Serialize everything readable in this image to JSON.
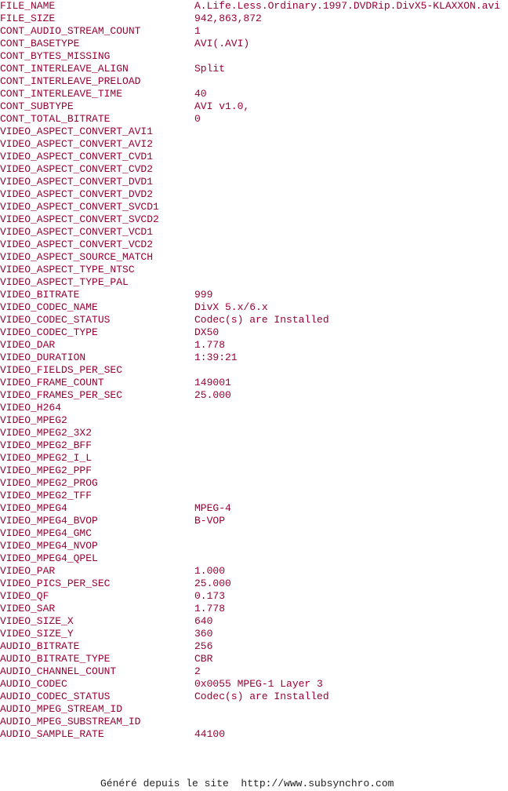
{
  "rows": [
    {
      "key": "FILE_NAME",
      "value": "A.Life.Less.Ordinary.1997.DVDRip.DivX5-KLAXXON.avi"
    },
    {
      "key": "FILE_SIZE",
      "value": "942,863,872"
    },
    {
      "key": "CONT_AUDIO_STREAM_COUNT",
      "value": "1"
    },
    {
      "key": "CONT_BASETYPE",
      "value": "AVI(.AVI)"
    },
    {
      "key": "CONT_BYTES_MISSING"
    },
    {
      "key": "CONT_INTERLEAVE_ALIGN",
      "value": "Split"
    },
    {
      "key": "CONT_INTERLEAVE_PRELOAD"
    },
    {
      "key": "CONT_INTERLEAVE_TIME",
      "value": "40"
    },
    {
      "key": "CONT_SUBTYPE",
      "value": "AVI v1.0,"
    },
    {
      "key": "CONT_TOTAL_BITRATE",
      "value": "0"
    },
    {
      "key": "VIDEO_ASPECT_CONVERT_AVI1"
    },
    {
      "key": "VIDEO_ASPECT_CONVERT_AVI2"
    },
    {
      "key": "VIDEO_ASPECT_CONVERT_CVD1"
    },
    {
      "key": "VIDEO_ASPECT_CONVERT_CVD2"
    },
    {
      "key": "VIDEO_ASPECT_CONVERT_DVD1"
    },
    {
      "key": "VIDEO_ASPECT_CONVERT_DVD2"
    },
    {
      "key": "VIDEO_ASPECT_CONVERT_SVCD1"
    },
    {
      "key": "VIDEO_ASPECT_CONVERT_SVCD2"
    },
    {
      "key": "VIDEO_ASPECT_CONVERT_VCD1"
    },
    {
      "key": "VIDEO_ASPECT_CONVERT_VCD2"
    },
    {
      "key": "VIDEO_ASPECT_SOURCE_MATCH"
    },
    {
      "key": "VIDEO_ASPECT_TYPE_NTSC"
    },
    {
      "key": "VIDEO_ASPECT_TYPE_PAL"
    },
    {
      "key": "VIDEO_BITRATE",
      "value": "999"
    },
    {
      "key": "VIDEO_CODEC_NAME",
      "value": "DivX 5.x/6.x"
    },
    {
      "key": "VIDEO_CODEC_STATUS",
      "value": "Codec(s) are Installed"
    },
    {
      "key": "VIDEO_CODEC_TYPE",
      "value": "DX50"
    },
    {
      "key": "VIDEO_DAR",
      "value": "1.778"
    },
    {
      "key": "VIDEO_DURATION",
      "value": "1:39:21"
    },
    {
      "key": "VIDEO_FIELDS_PER_SEC"
    },
    {
      "key": "VIDEO_FRAME_COUNT",
      "value": "149001"
    },
    {
      "key": "VIDEO_FRAMES_PER_SEC",
      "value": "25.000"
    },
    {
      "key": "VIDEO_H264"
    },
    {
      "key": "VIDEO_MPEG2"
    },
    {
      "key": "VIDEO_MPEG2_3X2"
    },
    {
      "key": "VIDEO_MPEG2_BFF"
    },
    {
      "key": "VIDEO_MPEG2_I_L"
    },
    {
      "key": "VIDEO_MPEG2_PPF"
    },
    {
      "key": "VIDEO_MPEG2_PROG"
    },
    {
      "key": "VIDEO_MPEG2_TFF"
    },
    {
      "key": "VIDEO_MPEG4",
      "value": "MPEG-4"
    },
    {
      "key": "VIDEO_MPEG4_BVOP",
      "value": "B-VOP"
    },
    {
      "key": "VIDEO_MPEG4_GMC"
    },
    {
      "key": "VIDEO_MPEG4_NVOP"
    },
    {
      "key": "VIDEO_MPEG4_QPEL"
    },
    {
      "key": "VIDEO_PAR",
      "value": "1.000"
    },
    {
      "key": "VIDEO_PICS_PER_SEC",
      "value": "25.000"
    },
    {
      "key": "VIDEO_QF",
      "value": "0.173"
    },
    {
      "key": "VIDEO_SAR",
      "value": "1.778"
    },
    {
      "key": "VIDEO_SIZE_X",
      "value": "640"
    },
    {
      "key": "VIDEO_SIZE_Y",
      "value": "360"
    },
    {
      "key": "AUDIO_BITRATE",
      "value": "256"
    },
    {
      "key": "AUDIO_BITRATE_TYPE",
      "value": "CBR"
    },
    {
      "key": "AUDIO_CHANNEL_COUNT",
      "value": "2"
    },
    {
      "key": "AUDIO_CODEC",
      "value": "0x0055 MPEG-1 Layer 3"
    },
    {
      "key": "AUDIO_CODEC_STATUS",
      "value": "Codec(s) are Installed"
    },
    {
      "key": "AUDIO_MPEG_STREAM_ID"
    },
    {
      "key": "AUDIO_MPEG_SUBSTREAM_ID"
    },
    {
      "key": "AUDIO_SAMPLE_RATE",
      "value": "44100"
    }
  ],
  "footer": "Généré depuis le site  http://www.subsynchro.com"
}
